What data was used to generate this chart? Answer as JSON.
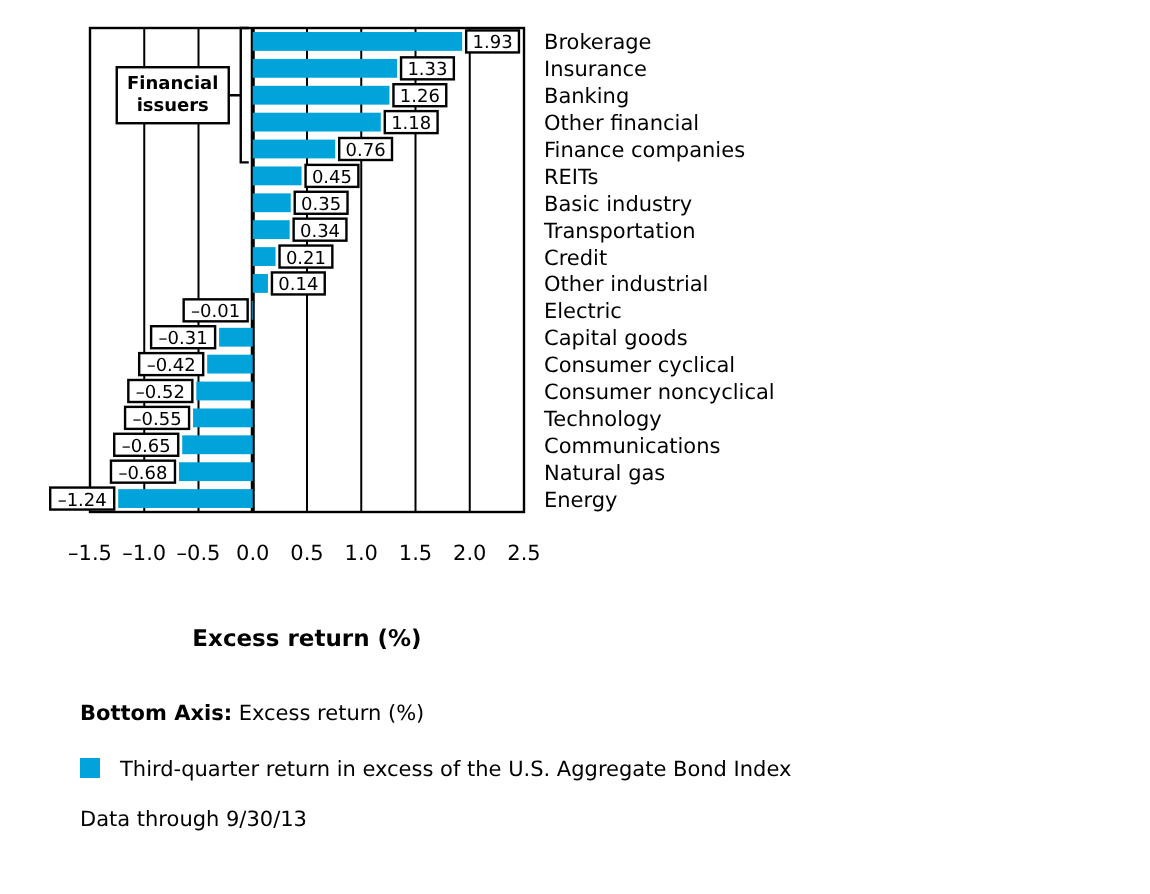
{
  "chart_data": {
    "type": "bar",
    "orientation": "horizontal",
    "xlabel": "Excess return (%)",
    "categories": [
      "Brokerage",
      "Insurance",
      "Banking",
      "Other financial",
      "Finance companies",
      "REITs",
      "Basic industry",
      "Transportation",
      "Credit",
      "Other industrial",
      "Electric",
      "Capital goods",
      "Consumer cyclical",
      "Consumer noncyclical",
      "Technology",
      "Communications",
      "Natural gas",
      "Energy"
    ],
    "series": [
      {
        "name": "Third-quarter return in excess of the U.S. Aggregate Bond Index",
        "color": "#00a3da",
        "values": [
          1.93,
          1.33,
          1.26,
          1.18,
          0.76,
          0.45,
          0.35,
          0.34,
          0.21,
          0.14,
          -0.01,
          -0.31,
          -0.42,
          -0.52,
          -0.55,
          -0.65,
          -0.68,
          -1.24
        ],
        "value_labels": [
          "1.93",
          "1.33",
          "1.26",
          "1.18",
          "0.76",
          "0.45",
          "0.35",
          "0.34",
          "0.21",
          "0.14",
          "–0.01",
          "–0.31",
          "–0.42",
          "–0.52",
          "–0.55",
          "–0.65",
          "–0.68",
          "–1.24"
        ]
      }
    ],
    "xlim": [
      -1.5,
      2.5
    ],
    "xticks": [
      {
        "value": -1.5,
        "label": "–1.5"
      },
      {
        "value": -1,
        "label": "–1.0"
      },
      {
        "value": -0.5,
        "label": "–0.5"
      },
      {
        "value": 0,
        "label": "0.0"
      },
      {
        "value": 0.5,
        "label": "0.5"
      },
      {
        "value": 1,
        "label": "1.0"
      },
      {
        "value": 1.5,
        "label": "1.5"
      },
      {
        "value": 2,
        "label": "2.0"
      },
      {
        "value": 2.5,
        "label": "2.5"
      }
    ],
    "grid": "x",
    "legend": "bottom",
    "annotations": [
      "Financial issuers",
      "Bottom Axis: Excess return (%)",
      "Data through 9/30/13"
    ]
  }
}
